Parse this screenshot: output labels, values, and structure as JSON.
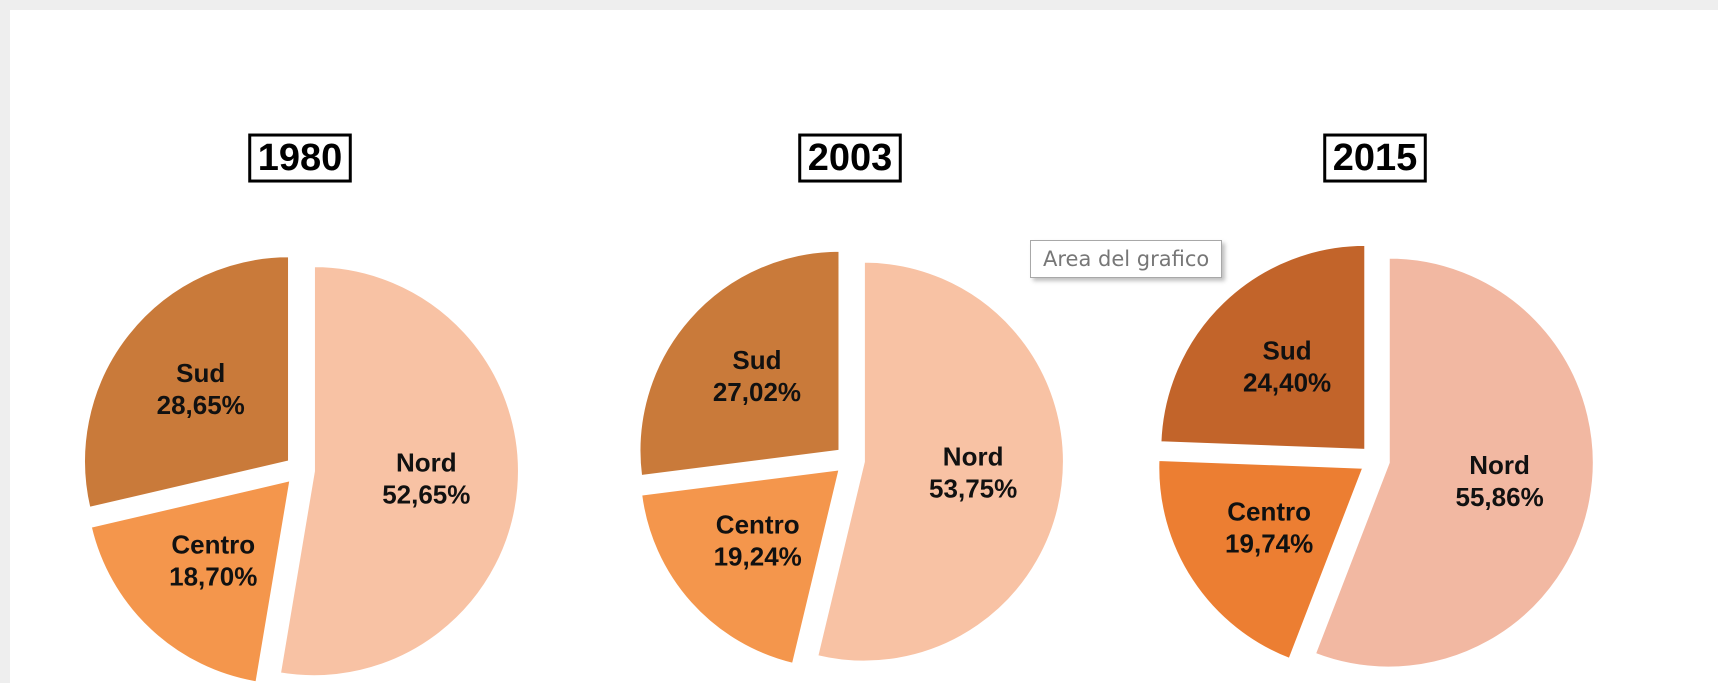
{
  "chart_data": [
    {
      "type": "pie",
      "title": "1980",
      "categories": [
        "Nord",
        "Centro",
        "Sud"
      ],
      "values": [
        52.65,
        18.7,
        28.65
      ],
      "value_labels": [
        "52,65%",
        "18,70%",
        "28,65%"
      ],
      "colors": [
        "#f8c2a4",
        "#f4964c",
        "#c97a3a"
      ]
    },
    {
      "type": "pie",
      "title": "2003",
      "categories": [
        "Nord",
        "Centro",
        "Sud"
      ],
      "values": [
        53.75,
        19.24,
        27.02
      ],
      "value_labels": [
        "53,75%",
        "19,24%",
        "27,02%"
      ],
      "colors": [
        "#f8c2a4",
        "#f4964c",
        "#c97a3a"
      ]
    },
    {
      "type": "pie",
      "title": "2015",
      "categories": [
        "Nord",
        "Centro",
        "Sud"
      ],
      "values": [
        55.86,
        19.74,
        24.4
      ],
      "value_labels": [
        "55,86%",
        "19,74%",
        "24,40%"
      ],
      "colors": [
        "#f2b8a2",
        "#ec7e32",
        "#c2642a"
      ]
    }
  ],
  "tooltip": "Area del grafico"
}
